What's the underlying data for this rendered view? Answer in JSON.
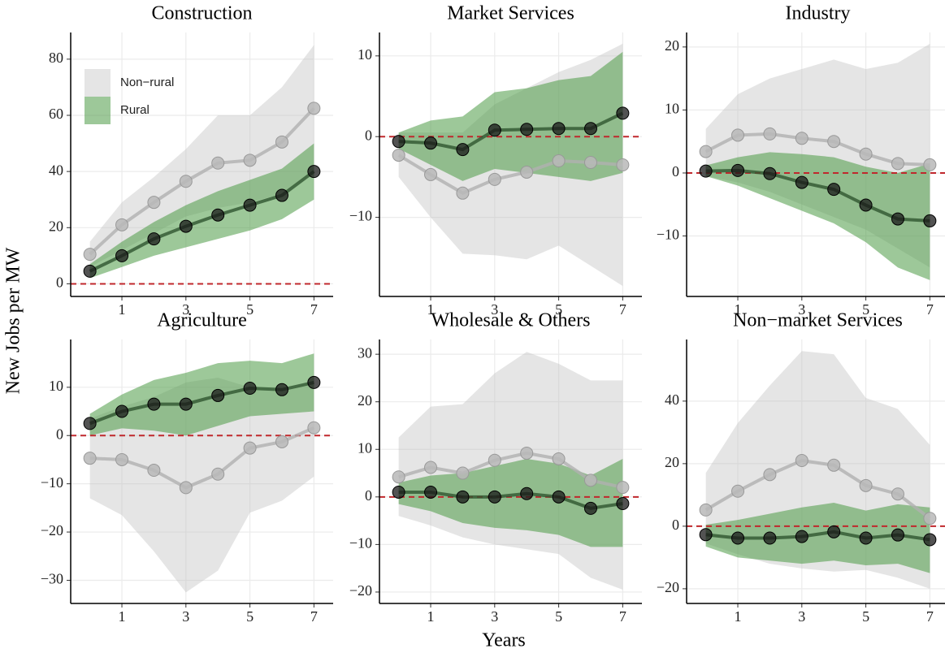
{
  "xlabel": "Years",
  "ylabel": "New Jobs per MW",
  "chart_data": [
    {
      "type": "line",
      "title": "Construction",
      "legend": "top-left",
      "hline": 0,
      "x": [
        0,
        1,
        2,
        3,
        4,
        5,
        6,
        7
      ],
      "xlim": [
        -0.6,
        7.6
      ],
      "xticks": [
        1,
        3,
        5,
        7
      ],
      "ylim": [
        -4.5,
        89.5
      ],
      "yticks": [
        0,
        20,
        40,
        60,
        80
      ],
      "grid": true,
      "series": [
        {
          "name": "Non−rural",
          "color": "#bebebe",
          "line_color": "#b0b0b0",
          "values": [
            10.5,
            21,
            29,
            36.5,
            43,
            44,
            50.5,
            62.5
          ],
          "lower": [
            6,
            12,
            18,
            24,
            27,
            29,
            32,
            40
          ],
          "upper": [
            15,
            29,
            38,
            48,
            60,
            60,
            70,
            85
          ]
        },
        {
          "name": "Rural",
          "color": "#4c9a45",
          "line_color": "#2f5530",
          "values": [
            4.5,
            10,
            16,
            20.5,
            24.5,
            28,
            31.5,
            40
          ],
          "lower": [
            2,
            6,
            10,
            13,
            16,
            19,
            23,
            30
          ],
          "upper": [
            7,
            15,
            22,
            28,
            33,
            37,
            41,
            50
          ]
        }
      ]
    },
    {
      "type": "line",
      "title": "Market Services",
      "hline": 0,
      "x": [
        0,
        1,
        2,
        3,
        4,
        5,
        6,
        7
      ],
      "xlim": [
        -0.6,
        7.6
      ],
      "xticks": [
        1,
        3,
        5,
        7
      ],
      "ylim": [
        -19.8,
        12.9
      ],
      "yticks": [
        {
          "value": -10,
          "label": "−10"
        },
        0,
        10
      ],
      "grid": true,
      "series": [
        {
          "color": "#bebebe",
          "line_color": "#b0b0b0",
          "values": [
            -2.3,
            -4.7,
            -7,
            -5.3,
            -4.4,
            -3,
            -3.2,
            -3.5
          ],
          "lower": [
            -5,
            -10,
            -14.5,
            -14.7,
            -15.2,
            -13.5,
            -16,
            -18.5
          ],
          "upper": [
            0.5,
            0.5,
            0.5,
            4,
            6,
            8,
            9.5,
            11.5
          ]
        },
        {
          "color": "#4c9a45",
          "line_color": "#2f5530",
          "values": [
            -0.6,
            -0.8,
            -1.6,
            0.8,
            0.9,
            1,
            1,
            2.9
          ],
          "lower": [
            -1.5,
            -3.5,
            -5.5,
            -4,
            -4.5,
            -5,
            -5.5,
            -4.5
          ],
          "upper": [
            0.5,
            2,
            2.5,
            5.5,
            6,
            7,
            7.5,
            10.5
          ]
        }
      ]
    },
    {
      "type": "line",
      "title": "Industry",
      "hline": 0,
      "x": [
        0,
        1,
        2,
        3,
        4,
        5,
        6,
        7
      ],
      "xlim": [
        -0.6,
        7.6
      ],
      "xticks": [
        1,
        3,
        5,
        7
      ],
      "ylim": [
        -19.6,
        22.3
      ],
      "yticks": [
        {
          "value": -10,
          "label": "−10"
        },
        0,
        10,
        20
      ],
      "grid": true,
      "series": [
        {
          "color": "#bebebe",
          "line_color": "#b0b0b0",
          "values": [
            3.4,
            6,
            6.2,
            5.5,
            5,
            3,
            1.5,
            1.3
          ],
          "lower": [
            -0.5,
            -1.5,
            -3,
            -5,
            -7,
            -9,
            -12,
            -15
          ],
          "upper": [
            7,
            12.5,
            15,
            16.5,
            18,
            16.5,
            17.5,
            20.5
          ]
        },
        {
          "color": "#4c9a45",
          "line_color": "#2f5530",
          "values": [
            0.3,
            0.4,
            -0.1,
            -1.5,
            -2.6,
            -5.1,
            -7.3,
            -7.6
          ],
          "lower": [
            -0.5,
            -2,
            -4,
            -6,
            -8,
            -11,
            -15,
            -17
          ],
          "upper": [
            1.2,
            2.5,
            3.3,
            3,
            2.5,
            1,
            0,
            1.5
          ]
        }
      ]
    },
    {
      "type": "line",
      "title": "Agriculture",
      "hline": 0,
      "x": [
        0,
        1,
        2,
        3,
        4,
        5,
        6,
        7
      ],
      "xlim": [
        -0.6,
        7.6
      ],
      "xticks": [
        1,
        3,
        5,
        7
      ],
      "ylim": [
        -34.8,
        19.9
      ],
      "yticks": [
        {
          "value": -30,
          "label": "−30"
        },
        {
          "value": -20,
          "label": "−20"
        },
        {
          "value": -10,
          "label": "−10"
        },
        0,
        10
      ],
      "grid": true,
      "series": [
        {
          "color": "#bebebe",
          "line_color": "#b0b0b0",
          "values": [
            -4.7,
            -5,
            -7.2,
            -10.8,
            -8,
            -2.6,
            -1.3,
            1.6
          ],
          "lower": [
            -13,
            -16.5,
            -24,
            -32.5,
            -28,
            -16,
            -13.5,
            -8.5
          ],
          "upper": [
            3.5,
            6,
            8,
            11,
            12,
            10,
            9,
            11
          ]
        },
        {
          "color": "#4c9a45",
          "line_color": "#2f5530",
          "values": [
            2.5,
            5,
            6.5,
            6.5,
            8.3,
            9.8,
            9.5,
            11
          ],
          "lower": [
            0,
            1.5,
            1,
            0,
            2,
            4,
            4.5,
            5
          ],
          "upper": [
            4.5,
            8.5,
            11.5,
            13,
            15,
            15.5,
            15,
            17
          ]
        }
      ]
    },
    {
      "type": "line",
      "title": "Wholesale & Others",
      "hline": 0,
      "x": [
        0,
        1,
        2,
        3,
        4,
        5,
        6,
        7
      ],
      "xlim": [
        -0.6,
        7.6
      ],
      "xticks": [
        1,
        3,
        5,
        7
      ],
      "ylim": [
        -22.4,
        33.1
      ],
      "yticks": [
        {
          "value": -20,
          "label": "−20"
        },
        {
          "value": -10,
          "label": "−10"
        },
        0,
        10,
        20,
        30
      ],
      "grid": true,
      "series": [
        {
          "color": "#bebebe",
          "line_color": "#b0b0b0",
          "values": [
            4.2,
            6.2,
            5,
            7.7,
            9.2,
            8,
            3.5,
            2
          ],
          "lower": [
            -4,
            -6,
            -8.5,
            -10,
            -11,
            -12,
            -17,
            -19.5
          ],
          "upper": [
            12.5,
            19,
            19.5,
            26,
            30.5,
            28,
            24.5,
            24.5
          ]
        },
        {
          "color": "#4c9a45",
          "line_color": "#2f5530",
          "values": [
            1,
            1,
            0,
            0,
            0.7,
            0,
            -2.4,
            -1.4
          ],
          "lower": [
            -1.5,
            -3,
            -5.5,
            -6.5,
            -7,
            -8,
            -10.5,
            -10.5
          ],
          "upper": [
            3,
            4.5,
            5,
            6.5,
            8,
            7,
            4.5,
            8
          ]
        }
      ]
    },
    {
      "type": "line",
      "title": "Non−market Services",
      "hline": 0,
      "x": [
        0,
        1,
        2,
        3,
        4,
        5,
        6,
        7
      ],
      "xlim": [
        -0.6,
        7.6
      ],
      "xticks": [
        1,
        3,
        5,
        7
      ],
      "ylim": [
        -24.7,
        59.7
      ],
      "yticks": [
        {
          "value": -20,
          "label": "−20"
        },
        0,
        20,
        40
      ],
      "grid": true,
      "series": [
        {
          "color": "#bebebe",
          "line_color": "#b0b0b0",
          "values": [
            5.2,
            11.2,
            16.5,
            21,
            19.5,
            13,
            10.3,
            2.5
          ],
          "lower": [
            -5.5,
            -9,
            -12,
            -13.5,
            -14.5,
            -14,
            -16.5,
            -20
          ],
          "upper": [
            17,
            33,
            45,
            56,
            55,
            41,
            37.5,
            26
          ]
        },
        {
          "color": "#4c9a45",
          "line_color": "#2f5530",
          "values": [
            -2.7,
            -3.8,
            -3.8,
            -3.3,
            -1.8,
            -3.8,
            -2.8,
            -4.3
          ],
          "lower": [
            -6.5,
            -10,
            -11,
            -12,
            -11,
            -12.5,
            -12,
            -15
          ],
          "upper": [
            0.5,
            2,
            4,
            6,
            7.5,
            5,
            7,
            6
          ]
        }
      ]
    }
  ]
}
